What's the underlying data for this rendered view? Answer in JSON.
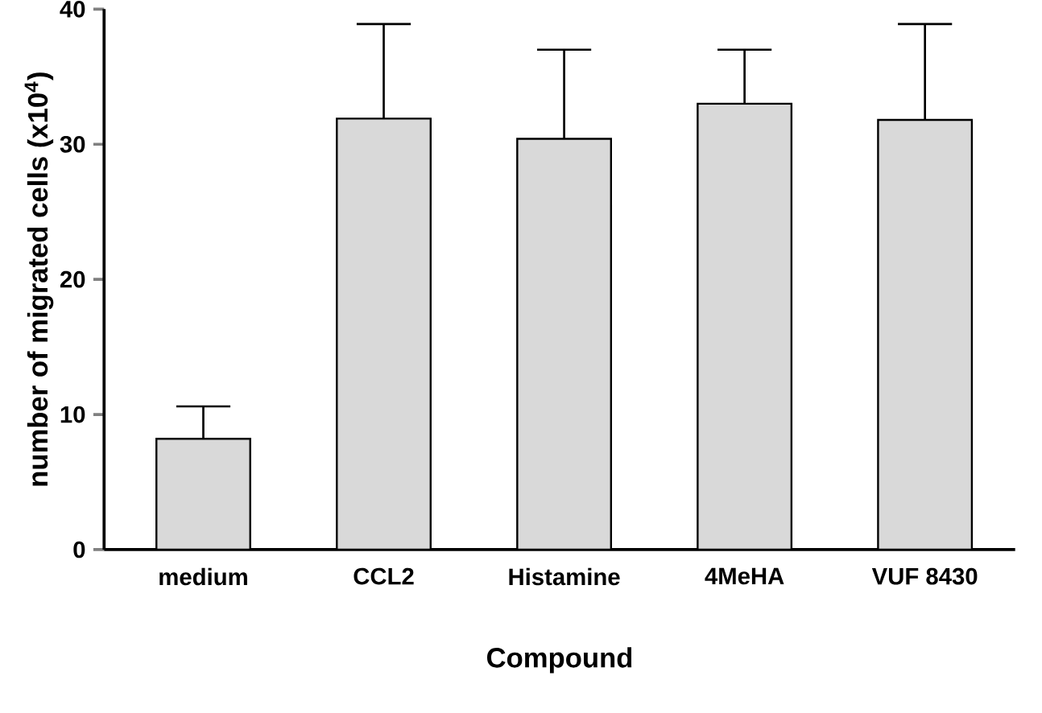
{
  "chart_data": {
    "type": "bar",
    "xlabel": "Compound",
    "ylabel": "number of migrated cells (x10$^{4}$)",
    "categories": [
      "medium",
      "CCL2",
      "Histamine",
      "4MeHA",
      "VUF 8430"
    ],
    "values": [
      8.2,
      31.9,
      30.4,
      33.0,
      31.8
    ],
    "errors": [
      [
        8.2,
        10.6
      ],
      [
        31.9,
        38.9
      ],
      [
        30.4,
        37.0
      ],
      [
        33.0,
        37.0
      ],
      [
        31.8,
        38.9
      ]
    ],
    "color": "#d9d9d9",
    "ylim": [
      0,
      40
    ],
    "yticks": [
      0,
      10,
      20,
      30,
      40
    ]
  }
}
